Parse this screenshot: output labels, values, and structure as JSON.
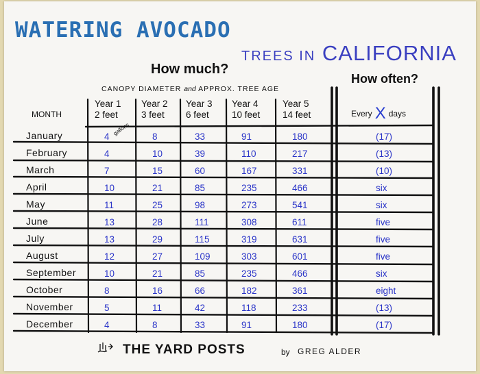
{
  "title": {
    "line1": "WATERING AVOCADO",
    "line2_small": "TREES IN",
    "line2_big": "CALIFORNIA"
  },
  "headers": {
    "how_much": "How much?",
    "how_often": "How often?",
    "canopy_part1": "CANOPY DIAMETER",
    "canopy_and": "and",
    "canopy_part2": "APPROX. TREE AGE",
    "month": "MONTH",
    "years": [
      {
        "year": "Year 1",
        "size": "2 feet"
      },
      {
        "year": "Year 2",
        "size": "3 feet"
      },
      {
        "year": "Year 3",
        "size": "6 feet"
      },
      {
        "year": "Year 4",
        "size": "10 feet"
      },
      {
        "year": "Year 5",
        "size": "14 feet"
      }
    ],
    "every": "Every",
    "x": "X",
    "days": "days",
    "unit_note": "gallons"
  },
  "rows": [
    {
      "month": "January",
      "values": [
        "4",
        "8",
        "33",
        "91",
        "180"
      ],
      "often": "(17)"
    },
    {
      "month": "February",
      "values": [
        "4",
        "10",
        "39",
        "110",
        "217"
      ],
      "often": "(13)"
    },
    {
      "month": "March",
      "values": [
        "7",
        "15",
        "60",
        "167",
        "331"
      ],
      "often": "(10)"
    },
    {
      "month": "April",
      "values": [
        "10",
        "21",
        "85",
        "235",
        "466"
      ],
      "often": "six"
    },
    {
      "month": "May",
      "values": [
        "11",
        "25",
        "98",
        "273",
        "541"
      ],
      "often": "six"
    },
    {
      "month": "June",
      "values": [
        "13",
        "28",
        "111",
        "308",
        "611"
      ],
      "often": "five"
    },
    {
      "month": "July",
      "values": [
        "13",
        "29",
        "115",
        "319",
        "631"
      ],
      "often": "five"
    },
    {
      "month": "August",
      "values": [
        "12",
        "27",
        "109",
        "303",
        "601"
      ],
      "often": "five"
    },
    {
      "month": "September",
      "values": [
        "10",
        "21",
        "85",
        "235",
        "466"
      ],
      "often": "six"
    },
    {
      "month": "October",
      "values": [
        "8",
        "16",
        "66",
        "182",
        "361"
      ],
      "often": "eight"
    },
    {
      "month": "November",
      "values": [
        "5",
        "11",
        "42",
        "118",
        "233"
      ],
      "often": "(13)"
    },
    {
      "month": "December",
      "values": [
        "4",
        "8",
        "33",
        "91",
        "180"
      ],
      "often": "(17)"
    }
  ],
  "footer": {
    "brand": "THE YARD POSTS",
    "by": "by",
    "author": "GREG ALDER"
  },
  "colors": {
    "title_blue": "#2a6fb3",
    "california_blue": "#3a3fc0",
    "value_blue": "#2a34c8",
    "ink": "#111111"
  }
}
